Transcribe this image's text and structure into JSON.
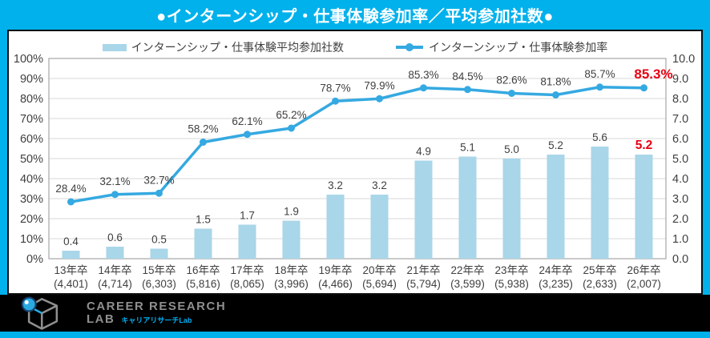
{
  "title": "●インターンシップ・仕事体験参加率／平均参加社数●",
  "legend": {
    "bar_label": "インターンシップ・仕事体験平均参加社数",
    "line_label": "インターンシップ・仕事体験参加率"
  },
  "footer": {
    "brand_line1": "CAREER RESEARCH",
    "brand_line2": "LAB",
    "brand_sub": "キャリアリサーチLab"
  },
  "colors": {
    "accent_cyan": "#00B1EC",
    "bar_fill": "#A9D6E9",
    "line_color": "#35A9E1",
    "grid_line": "#D9D9D9",
    "plot_border": "#A6A6A6",
    "text_dark": "#3F3F3F",
    "highlight_red": "#E60012",
    "logo_gray": "#8F8F8F"
  },
  "chart_data": {
    "type": "bar+line combo",
    "categories": [
      "13年卒",
      "14年卒",
      "15年卒",
      "16年卒",
      "17年卒",
      "18年卒",
      "19年卒",
      "20年卒",
      "21年卒",
      "22年卒",
      "23年卒",
      "24年卒",
      "25年卒",
      "26年卒"
    ],
    "sample_sizes": [
      "(4,401)",
      "(4,714)",
      "(6,303)",
      "(5,816)",
      "(8,065)",
      "(3,996)",
      "(4,466)",
      "(5,694)",
      "(5,794)",
      "(3,599)",
      "(5,938)",
      "(3,235)",
      "(2,633)",
      "(2,007)"
    ],
    "series": [
      {
        "name": "インターンシップ・仕事体験平均参加社数",
        "type": "bar",
        "axis": "right",
        "values": [
          0.4,
          0.6,
          0.5,
          1.5,
          1.7,
          1.9,
          3.2,
          3.2,
          4.9,
          5.1,
          5.0,
          5.2,
          5.6,
          5.2
        ],
        "labels": [
          "0.4",
          "0.6",
          "0.5",
          "1.5",
          "1.7",
          "1.9",
          "3.2",
          "3.2",
          "4.9",
          "5.1",
          "5.0",
          "5.2",
          "5.6",
          "5.2"
        ]
      },
      {
        "name": "インターンシップ・仕事体験参加率",
        "type": "line",
        "axis": "left",
        "values": [
          28.4,
          32.1,
          32.7,
          58.2,
          62.1,
          65.2,
          78.7,
          79.9,
          85.3,
          84.5,
          82.6,
          81.8,
          85.7,
          85.3
        ],
        "labels": [
          "28.4%",
          "32.1%",
          "32.7%",
          "58.2%",
          "62.1%",
          "65.2%",
          "78.7%",
          "79.9%",
          "85.3%",
          "84.5%",
          "82.6%",
          "81.8%",
          "85.7%",
          "85.3%"
        ]
      }
    ],
    "left_axis": {
      "min": 0,
      "max": 100,
      "step": 10,
      "ticks": [
        "0%",
        "10%",
        "20%",
        "30%",
        "40%",
        "50%",
        "60%",
        "70%",
        "80%",
        "90%",
        "100%"
      ]
    },
    "right_axis": {
      "min": 0,
      "max": 10,
      "step": 1,
      "ticks": [
        "0.0",
        "1.0",
        "2.0",
        "3.0",
        "4.0",
        "5.0",
        "6.0",
        "7.0",
        "8.0",
        "9.0",
        "10.0"
      ]
    },
    "highlight_last_point": true,
    "grid": true,
    "legend_position": "top"
  }
}
